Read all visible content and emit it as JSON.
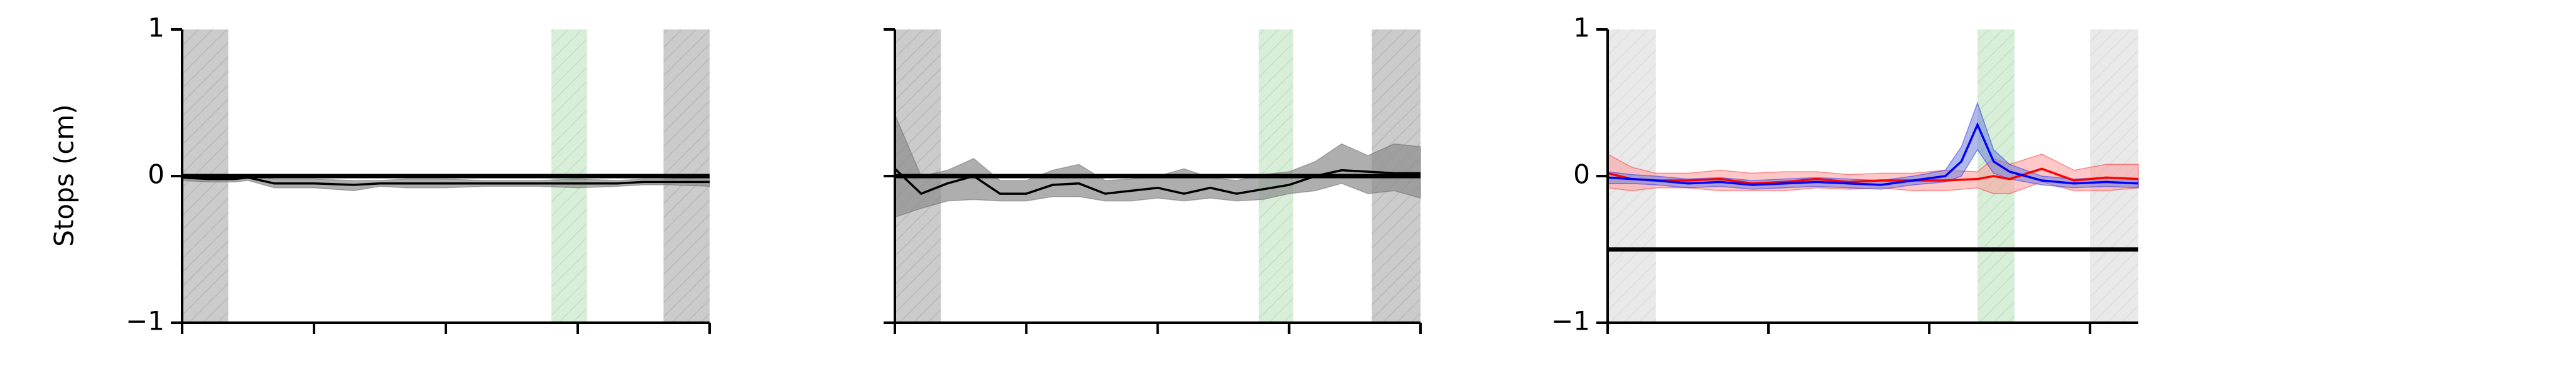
{
  "figure": {
    "ylabel": "Stops (cm)"
  },
  "colors": {
    "dark_shade": "#8c8c8c",
    "light_shade": "#c8c8c8",
    "green_shade": "#8fd18f",
    "red": "#ff0000",
    "blue": "#0000ff",
    "black": "#000000"
  },
  "chart_data": [
    {
      "type": "line",
      "ylim": [
        -1,
        1
      ],
      "yticks": [
        "1",
        "0",
        "−1"
      ],
      "xlim": [
        0,
        40
      ],
      "xticks": [
        0,
        10,
        20,
        30,
        40
      ],
      "reference_line": 0,
      "shaded_regions": [
        {
          "start": 0,
          "end": 3.5,
          "shade": "dark"
        },
        {
          "start": 28,
          "end": 30.7,
          "shade": "green"
        },
        {
          "start": 36.5,
          "end": 40,
          "shade": "dark"
        }
      ],
      "series": [
        {
          "color": "#000000",
          "x": [
            0,
            2,
            4,
            5,
            7,
            10,
            13,
            15,
            17,
            20,
            23,
            25,
            27,
            30,
            33,
            35,
            37,
            40
          ],
          "values": [
            -0.01,
            -0.02,
            -0.02,
            -0.01,
            -0.05,
            -0.05,
            -0.06,
            -0.05,
            -0.05,
            -0.05,
            -0.05,
            -0.05,
            -0.05,
            -0.05,
            -0.05,
            -0.04,
            -0.04,
            -0.04
          ],
          "lower": [
            -0.03,
            -0.04,
            -0.04,
            -0.03,
            -0.08,
            -0.08,
            -0.1,
            -0.07,
            -0.08,
            -0.08,
            -0.07,
            -0.07,
            -0.07,
            -0.08,
            -0.07,
            -0.06,
            -0.06,
            -0.07
          ],
          "upper": [
            0.01,
            0.0,
            0.0,
            0.01,
            -0.02,
            -0.02,
            -0.03,
            -0.03,
            -0.02,
            -0.02,
            -0.03,
            -0.03,
            -0.03,
            -0.02,
            -0.03,
            -0.02,
            -0.02,
            -0.01
          ]
        }
      ]
    },
    {
      "type": "line",
      "ylim": [
        -1,
        1
      ],
      "yticks": [],
      "xlim": [
        0,
        40
      ],
      "xticks": [
        0,
        10,
        20,
        30,
        40
      ],
      "reference_line": 0,
      "shaded_regions": [
        {
          "start": 0,
          "end": 3.5,
          "shade": "dark"
        },
        {
          "start": 27.7,
          "end": 30.3,
          "shade": "green"
        },
        {
          "start": 36.3,
          "end": 40,
          "shade": "dark"
        }
      ],
      "series": [
        {
          "color": "#000000",
          "x": [
            0,
            2,
            4,
            6,
            8,
            10,
            12,
            14,
            16,
            18,
            20,
            22,
            24,
            26,
            28,
            30,
            32,
            34,
            36,
            38,
            40
          ],
          "values": [
            0.05,
            -0.12,
            -0.05,
            0.0,
            -0.12,
            -0.12,
            -0.06,
            -0.05,
            -0.12,
            -0.1,
            -0.08,
            -0.12,
            -0.08,
            -0.12,
            -0.09,
            -0.06,
            0.0,
            0.04,
            0.03,
            0.02,
            0.02
          ],
          "lower": [
            -0.28,
            -0.22,
            -0.17,
            -0.16,
            -0.17,
            -0.17,
            -0.14,
            -0.14,
            -0.17,
            -0.17,
            -0.15,
            -0.17,
            -0.15,
            -0.17,
            -0.16,
            -0.12,
            -0.1,
            -0.05,
            -0.12,
            -0.1,
            -0.15
          ],
          "upper": [
            0.42,
            0.0,
            0.04,
            0.12,
            -0.03,
            -0.03,
            0.04,
            0.08,
            -0.03,
            -0.02,
            0.0,
            0.05,
            -0.01,
            -0.03,
            0.01,
            0.03,
            0.1,
            0.22,
            0.14,
            0.22,
            0.2
          ]
        }
      ]
    },
    {
      "type": "line",
      "ylim": [
        -1,
        1
      ],
      "yticks": [
        "1",
        "0",
        "−1"
      ],
      "xlim": [
        0,
        33
      ],
      "xticks": [
        0,
        10,
        20,
        30
      ],
      "reference_line": -0.5,
      "shaded_regions": [
        {
          "start": 0,
          "end": 3,
          "shade": "light"
        },
        {
          "start": 23,
          "end": 25.3,
          "shade": "green"
        },
        {
          "start": 30,
          "end": 33,
          "shade": "light"
        }
      ],
      "series": [
        {
          "color": "#ff0000",
          "x": [
            0,
            1.5,
            3,
            5,
            7,
            9,
            11,
            13,
            15,
            17,
            19,
            21,
            23,
            24,
            25,
            27,
            29,
            31,
            33
          ],
          "values": [
            0.02,
            -0.02,
            -0.03,
            -0.03,
            -0.02,
            -0.05,
            -0.04,
            -0.02,
            -0.04,
            -0.03,
            -0.03,
            -0.03,
            -0.02,
            0.0,
            -0.02,
            0.05,
            -0.03,
            -0.01,
            -0.02
          ],
          "lower": [
            -0.08,
            -0.1,
            -0.08,
            -0.08,
            -0.1,
            -0.1,
            -0.1,
            -0.08,
            -0.09,
            -0.08,
            -0.1,
            -0.1,
            -0.08,
            -0.12,
            -0.12,
            -0.04,
            -0.1,
            -0.1,
            -0.08
          ],
          "upper": [
            0.15,
            0.06,
            0.02,
            0.02,
            0.04,
            0.02,
            0.03,
            0.03,
            0.01,
            0.02,
            0.02,
            0.04,
            0.03,
            0.12,
            0.08,
            0.15,
            0.04,
            0.08,
            0.08
          ]
        },
        {
          "color": "#0000ff",
          "x": [
            0,
            1.5,
            3,
            5,
            7,
            9,
            11,
            13,
            15,
            17,
            19,
            21,
            22,
            23,
            24,
            25,
            27,
            29,
            31,
            33
          ],
          "values": [
            -0.01,
            -0.02,
            -0.03,
            -0.05,
            -0.04,
            -0.06,
            -0.05,
            -0.04,
            -0.05,
            -0.06,
            -0.03,
            0.0,
            0.1,
            0.35,
            0.1,
            0.03,
            -0.03,
            -0.05,
            -0.04,
            -0.05
          ],
          "lower": [
            -0.05,
            -0.05,
            -0.06,
            -0.08,
            -0.07,
            -0.09,
            -0.08,
            -0.07,
            -0.08,
            -0.09,
            -0.06,
            -0.04,
            0.0,
            0.18,
            0.02,
            -0.02,
            -0.06,
            -0.08,
            -0.07,
            -0.08
          ],
          "upper": [
            0.03,
            0.01,
            0.0,
            -0.02,
            -0.01,
            -0.03,
            -0.02,
            -0.01,
            -0.02,
            -0.03,
            0.0,
            0.04,
            0.2,
            0.5,
            0.18,
            0.08,
            0.0,
            -0.02,
            -0.01,
            -0.02
          ]
        }
      ]
    }
  ]
}
